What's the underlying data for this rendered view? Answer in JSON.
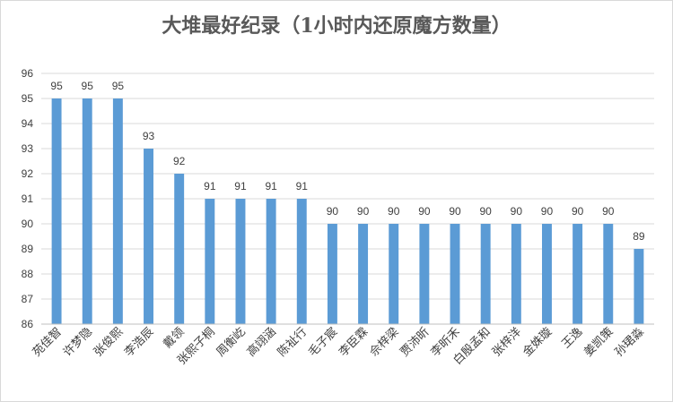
{
  "chart_data": {
    "type": "bar",
    "title": "大堆最好纪录（1小时内还原魔方数量）",
    "xlabel": "",
    "ylabel": "",
    "ylim": [
      86,
      96
    ],
    "yticks": [
      86,
      87,
      88,
      89,
      90,
      91,
      92,
      93,
      94,
      95,
      96
    ],
    "grid": true,
    "legend": "none",
    "bar_color": "#5b9bd5",
    "categories": [
      "苑佳智",
      "许梦隐",
      "张俊熙",
      "李浩辰",
      "戴领",
      "张熙子桐",
      "周衡屹",
      "高翊涵",
      "陈祉行",
      "毛子宸",
      "李臣霖",
      "佘梓梁",
      "贾沛昕",
      "李昕禾",
      "白殷孟和",
      "张梓洋",
      "金姝璇",
      "王逸",
      "姜凯策",
      "孙珺淼"
    ],
    "values": [
      95,
      95,
      95,
      93,
      92,
      91,
      91,
      91,
      91,
      90,
      90,
      90,
      90,
      90,
      90,
      90,
      90,
      90,
      90,
      89
    ]
  }
}
